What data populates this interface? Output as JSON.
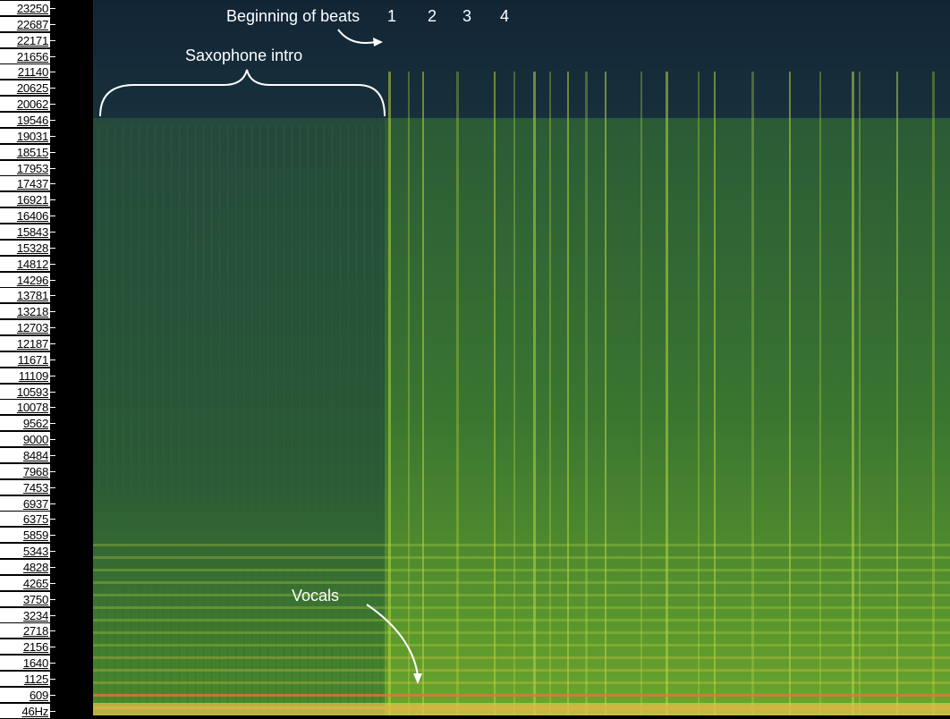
{
  "chart_data": {
    "type": "heatmap",
    "title": "",
    "xlabel": "",
    "ylabel": "",
    "y_tick_labels": [
      "23250",
      "22687",
      "22171",
      "21656",
      "21140",
      "20625",
      "20062",
      "19546",
      "19031",
      "18515",
      "17953",
      "17437",
      "16921",
      "16406",
      "15843",
      "15328",
      "14812",
      "14296",
      "13781",
      "13218",
      "12703",
      "12187",
      "11671",
      "11109",
      "10593",
      "10078",
      "9562",
      "9000",
      "8484",
      "7968",
      "7453",
      "6937",
      "6375",
      "5859",
      "5343",
      "4828",
      "4265",
      "3750",
      "3234",
      "2718",
      "2156",
      "1640",
      "1125",
      "609",
      "46Hz"
    ],
    "colormap": [
      "#142838",
      "#1d4a3e",
      "#2f6b35",
      "#5a9a2a",
      "#b8d640",
      "#e7c44a",
      "#e07a35"
    ],
    "annotations": {
      "beats_label": "Beginning of beats",
      "beat_numbers": [
        "1",
        "2",
        "3",
        "4"
      ],
      "intro_label": "Saxophone intro",
      "vocals_label": "Vocals"
    }
  }
}
